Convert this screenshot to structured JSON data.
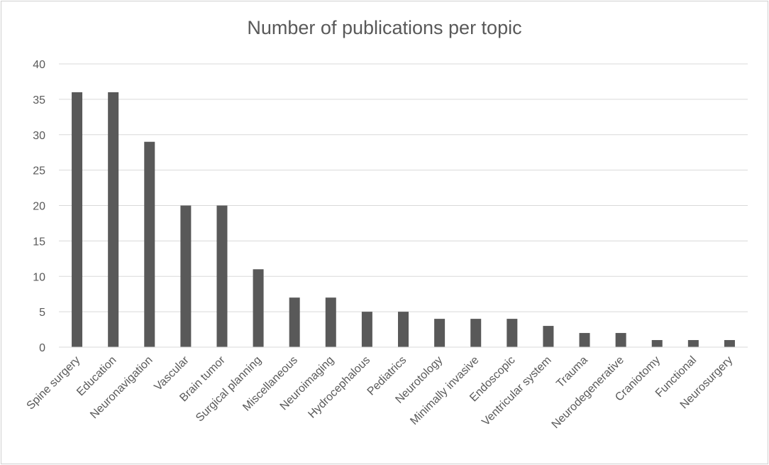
{
  "chart_data": {
    "type": "bar",
    "title": "Number of publications per topic",
    "xlabel": "",
    "ylabel": "",
    "categories": [
      "Spine surgery",
      "Education",
      "Neuronavigation",
      "Vascular",
      "Brain tumor",
      "Surgical planning",
      "Miscellaneous",
      "Neuroimaging",
      "Hydrocephalous",
      "Pediatrics",
      "Neurotology",
      "Minimally invasive",
      "Endoscopic",
      "Ventricular system",
      "Trauma",
      "Neurodegenerative",
      "Craniotomy",
      "Functional",
      "Neurosurgery"
    ],
    "values": [
      36,
      36,
      29,
      20,
      20,
      11,
      7,
      7,
      5,
      5,
      4,
      4,
      4,
      3,
      2,
      2,
      1,
      1,
      1
    ],
    "ylim": [
      0,
      40
    ],
    "yticks": [
      0,
      5,
      10,
      15,
      20,
      25,
      30,
      35,
      40
    ],
    "grid": true,
    "legend": "none",
    "bar_color": "#595959",
    "grid_color": "#d9d9d9"
  }
}
